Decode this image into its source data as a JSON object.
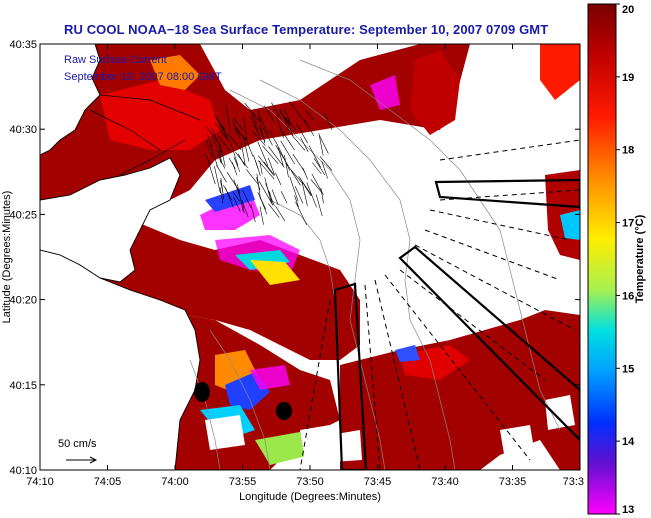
{
  "title": "RU COOL  NOAA−18  Sea Surface Temperature:  September 10, 2007 0709 GMT",
  "overlay": {
    "line1": "Raw Surface Current",
    "line2": "September 10, 2007 08:00 GMT"
  },
  "scale_label": "50 cm/s",
  "axes": {
    "xlabel": "Longitude (Degrees:Minutes)",
    "ylabel": "Latitude (Degrees:Minutes)",
    "xticks": [
      "74:10",
      "74:05",
      "74:00",
      "73:55",
      "73:50",
      "73:45",
      "73:40",
      "73:35",
      "73:3"
    ],
    "yticks": [
      "40:35",
      "40:30",
      "40:25",
      "40:20",
      "40:15",
      "40:10"
    ]
  },
  "colorbar": {
    "label": "Temperature (°C)",
    "ticks": [
      "20",
      "19",
      "18",
      "17",
      "16",
      "15",
      "14",
      "13"
    ],
    "min": 13,
    "max": 20
  },
  "colors": {
    "land": "#ffffff",
    "sst_warm": "#9a0000",
    "sst_red": "#e80000",
    "title_blue": "#1a1aa8"
  }
}
